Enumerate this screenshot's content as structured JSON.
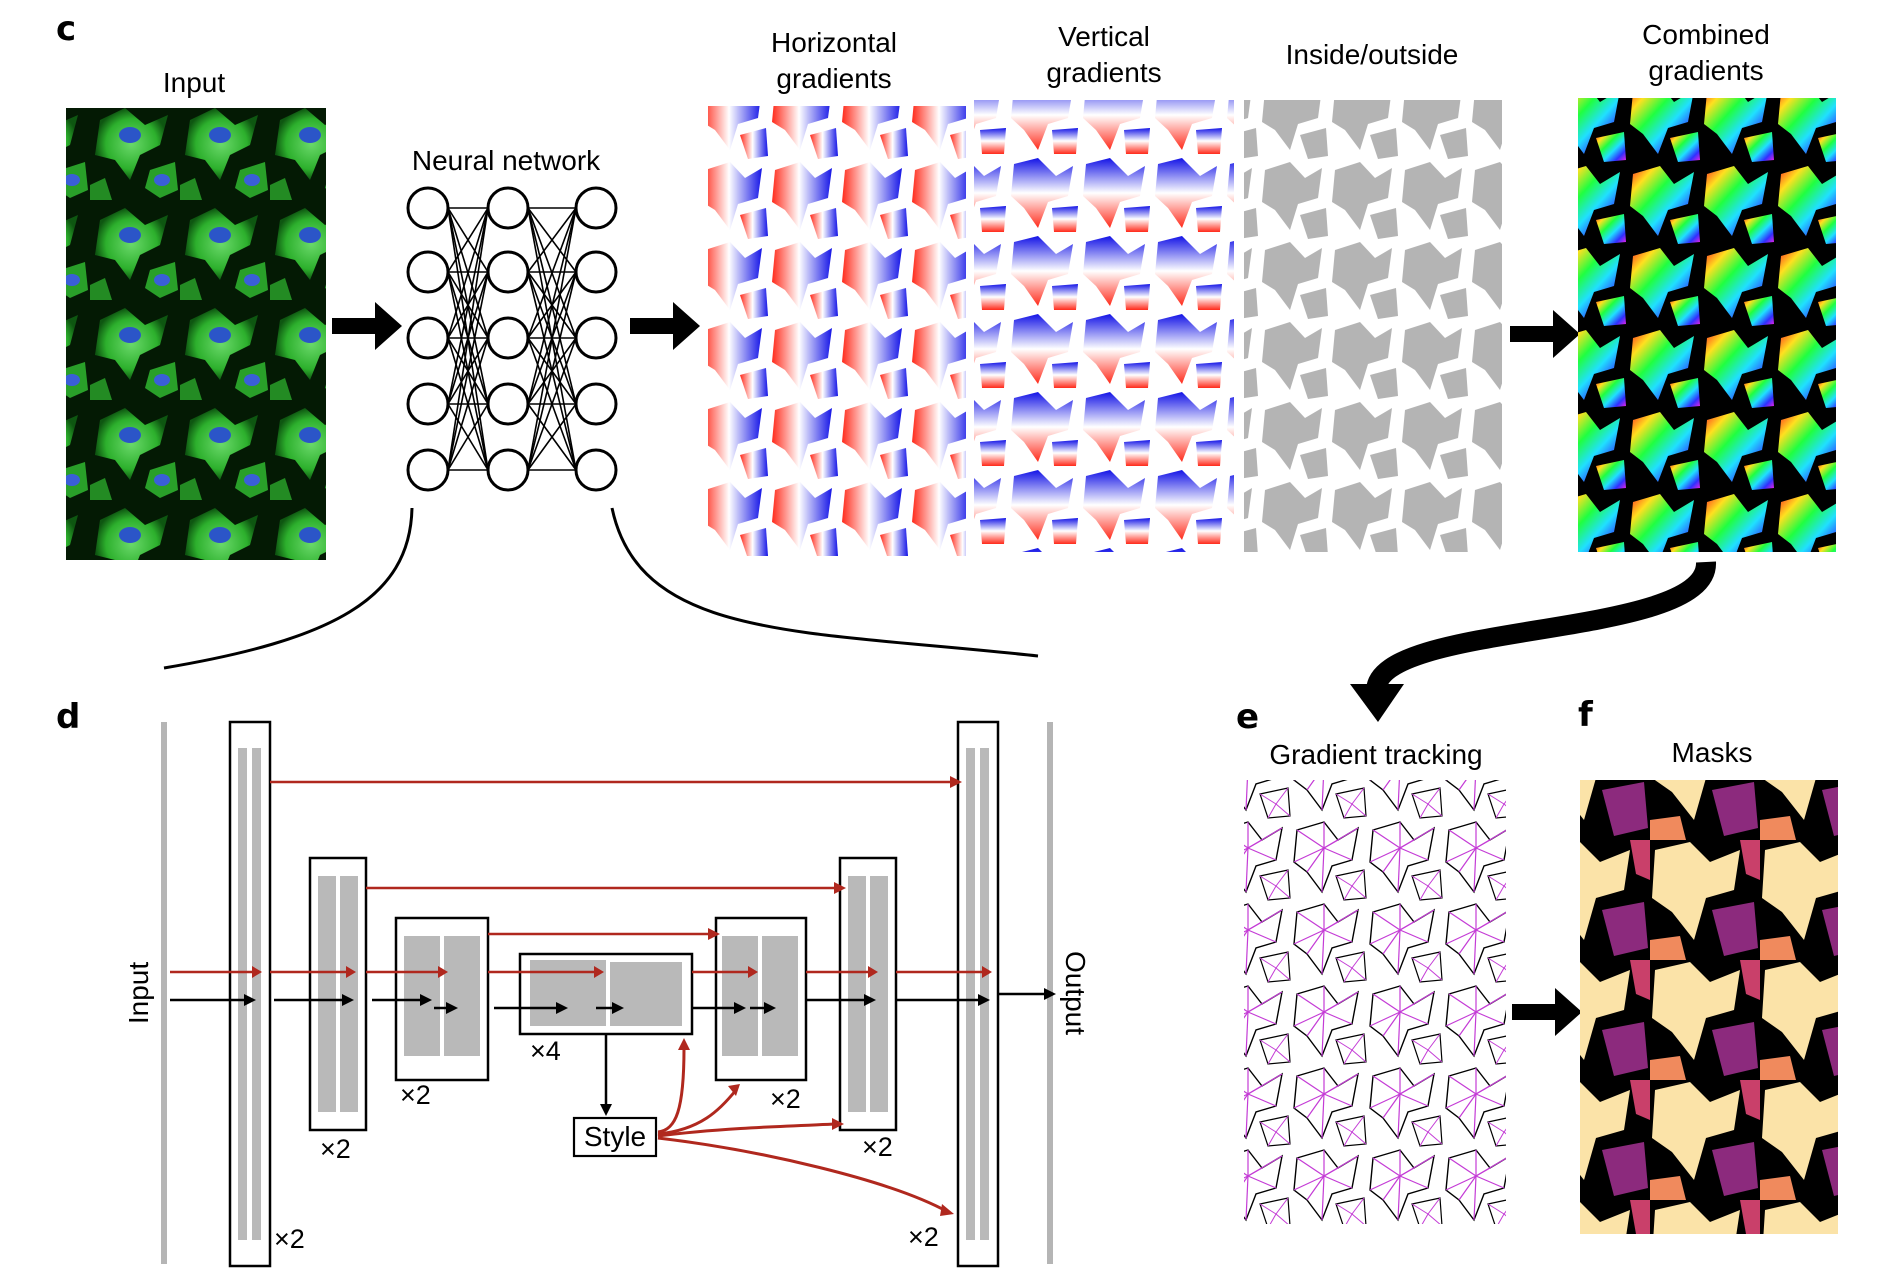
{
  "panels": {
    "c": {
      "letter": "c",
      "input_label": "Input",
      "network_label": "Neural network",
      "horizontal_label": [
        "Horizontal",
        "gradients"
      ],
      "vertical_label": [
        "Vertical",
        "gradients"
      ],
      "inside_label": "Inside/outside",
      "combined_label": [
        "Combined",
        "gradients"
      ]
    },
    "d": {
      "letter": "d",
      "input_label": "Input",
      "output_label": "Output",
      "style_label": "Style",
      "repeat_labels": [
        "×2",
        "×2",
        "×2",
        "×4",
        "×2",
        "×2",
        "×2"
      ]
    },
    "e": {
      "letter": "e",
      "label": "Gradient tracking"
    },
    "f": {
      "letter": "f",
      "label": "Masks"
    }
  },
  "colors": {
    "cell_green": "#2fb82f",
    "nucleus_blue": "#2b55c8",
    "gradient_red": "#e8392e",
    "gradient_blue": "#1a1ae0",
    "mask_gray": "#b4b4b4",
    "skip_red": "#b0281e",
    "track_magenta": "#c43bd6",
    "block_gray": "#b9b9b9"
  },
  "icons": {
    "neural_network": "three-layer-fully-connected-network-icon",
    "arrows": "thick-black-arrow-icon"
  }
}
